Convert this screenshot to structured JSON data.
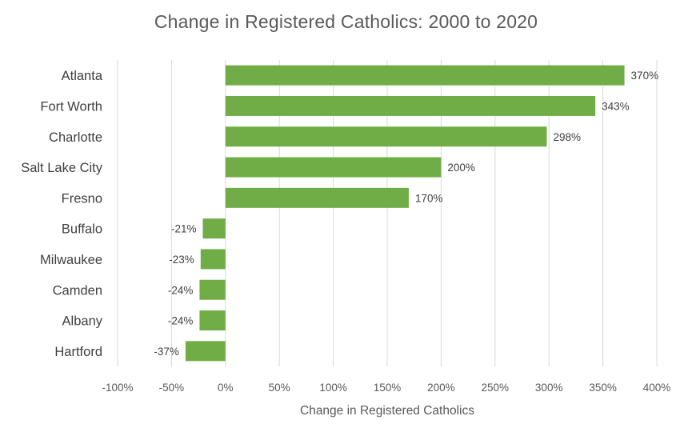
{
  "chart_data": {
    "type": "bar",
    "orientation": "horizontal",
    "title": "Change in Registered Catholics: 2000 to 2020",
    "xlabel": "Change in Registered Catholics",
    "ylabel": "",
    "categories": [
      "Atlanta",
      "Fort Worth",
      "Charlotte",
      "Salt Lake City",
      "Fresno",
      "Buffalo",
      "Milwaukee",
      "Camden",
      "Albany",
      "Hartford"
    ],
    "values": [
      370,
      343,
      298,
      200,
      170,
      -21,
      -23,
      -24,
      -24,
      -37
    ],
    "data_labels": [
      "370%",
      "343%",
      "298%",
      "200%",
      "170%",
      "-21%",
      "-23%",
      "-24%",
      "-24%",
      "-37%"
    ],
    "xlim": [
      -100,
      400
    ],
    "xticks": [
      -100,
      -50,
      0,
      50,
      100,
      150,
      200,
      250,
      300,
      350,
      400
    ],
    "xtick_labels": [
      "-100%",
      "-50%",
      "0%",
      "50%",
      "100%",
      "150%",
      "200%",
      "250%",
      "300%",
      "350%",
      "400%"
    ],
    "grid": true,
    "legend": "none",
    "bar_color": "#70ad47",
    "grid_color": "#d9d9d9"
  }
}
